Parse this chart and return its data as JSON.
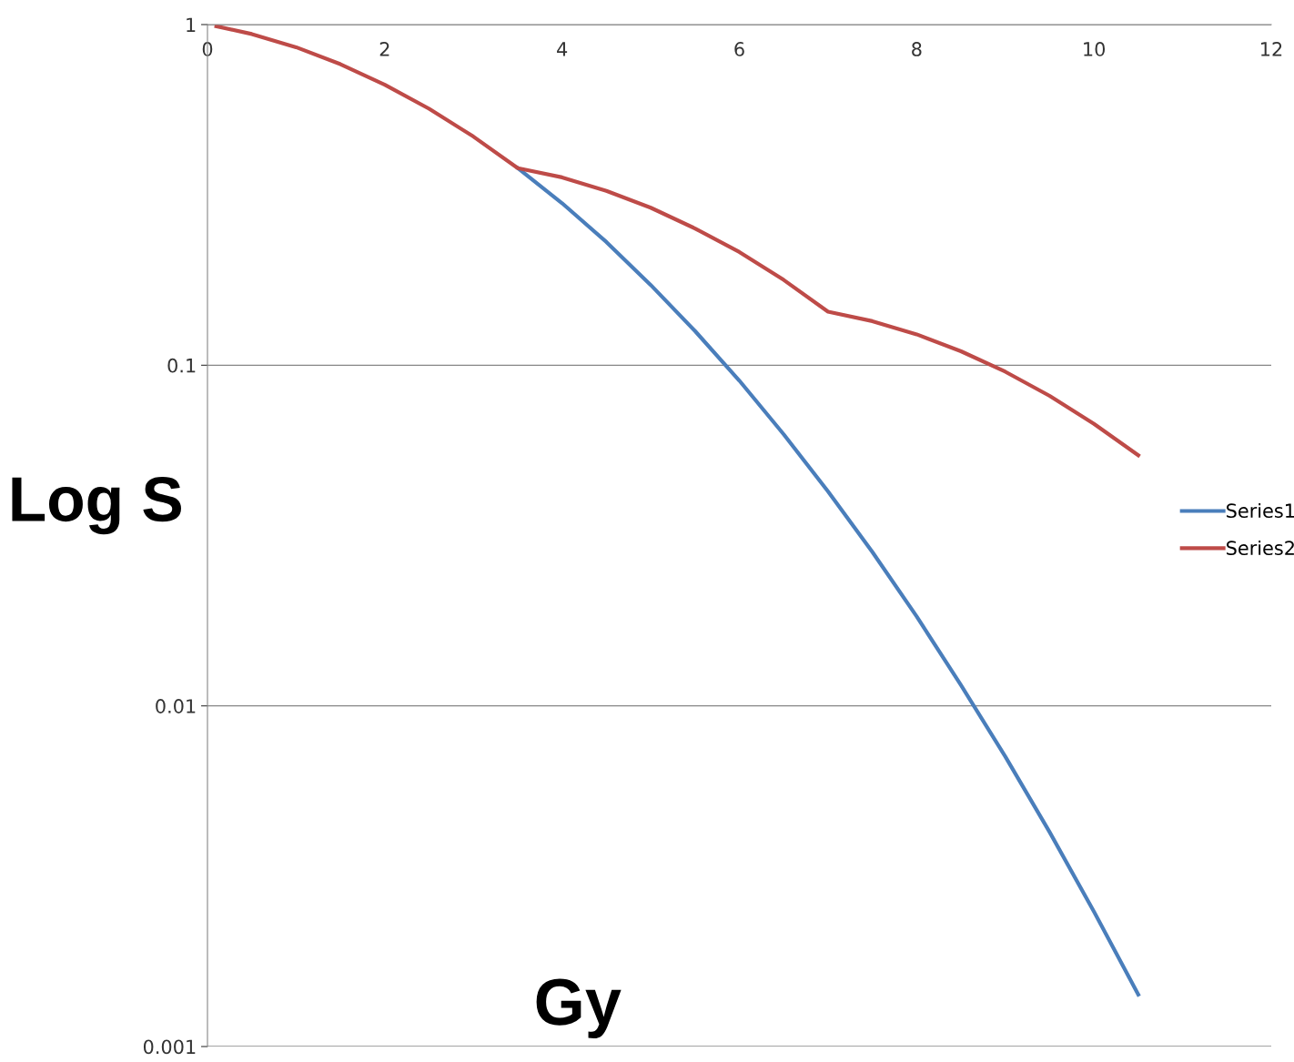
{
  "chart_data": {
    "type": "line",
    "xlabel": "Gy",
    "ylabel": "Log S",
    "x": [
      0.1,
      0.5,
      1,
      1.5,
      2,
      2.5,
      3,
      3.5,
      4,
      4.5,
      5,
      5.5,
      6,
      6.5,
      7,
      7.5,
      8,
      8.5,
      9,
      9.5,
      10,
      10.5
    ],
    "series": [
      {
        "name": "Series1",
        "color": "#4a7ebb",
        "values": [
          null,
          null,
          null,
          null,
          null,
          null,
          null,
          0.379,
          0.299,
          0.23,
          0.172,
          0.126,
          0.0901,
          0.0627,
          0.0426,
          0.0283,
          0.0183,
          0.0115,
          0.0071,
          0.00426,
          0.00249,
          0.00142
        ]
      },
      {
        "name": "Series2",
        "color": "#be4b48",
        "values": [
          0.989,
          0.938,
          0.858,
          0.765,
          0.666,
          0.566,
          0.469,
          0.379,
          0.356,
          0.325,
          0.29,
          0.252,
          0.215,
          0.178,
          0.1436,
          0.1347,
          0.1232,
          0.1099,
          0.0957,
          0.0813,
          0.0673,
          0.0544
        ]
      }
    ],
    "log": "y",
    "xlim": [
      0,
      12
    ],
    "xticks": [
      0,
      2,
      4,
      6,
      8,
      10,
      12
    ],
    "ylim": [
      0.001,
      1
    ],
    "yticks": [
      0.001,
      0.01,
      0.1,
      1
    ],
    "grid": "y",
    "legend": "right",
    "marker": "none",
    "line_style": "solid"
  }
}
